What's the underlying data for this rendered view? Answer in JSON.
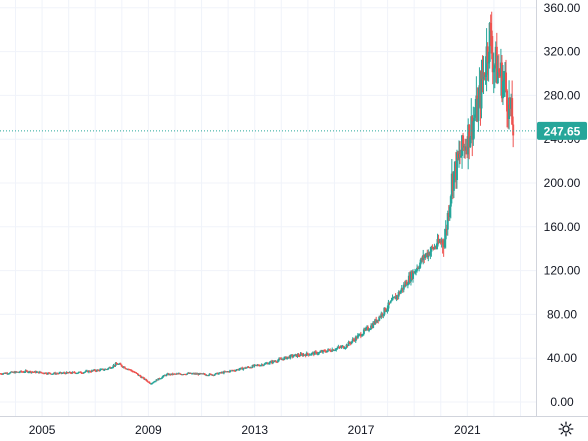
{
  "chart_data": {
    "type": "candlestick",
    "title": "",
    "xlabel": "",
    "ylabel": "",
    "x_ticks": [
      "2005",
      "2009",
      "2013",
      "2017",
      "2021"
    ],
    "y_ticks": [
      "0.00",
      "40.00",
      "80.00",
      "120.00",
      "160.00",
      "200.00",
      "240.00",
      "280.00",
      "320.00",
      "360.00"
    ],
    "ylim": [
      0,
      360
    ],
    "xlim": [
      "2003-06",
      "2023-08"
    ],
    "last_price": "247.65",
    "last_price_value": 247.65,
    "grid": true,
    "price_series": [
      {
        "date": "2003-06",
        "close": 26
      },
      {
        "date": "2004-06",
        "close": 28
      },
      {
        "date": "2005-06",
        "close": 26
      },
      {
        "date": "2006-06",
        "close": 27
      },
      {
        "date": "2007-06",
        "close": 30
      },
      {
        "date": "2007-11",
        "close": 35
      },
      {
        "date": "2008-06",
        "close": 28
      },
      {
        "date": "2009-02",
        "close": 17
      },
      {
        "date": "2009-09",
        "close": 25
      },
      {
        "date": "2010-06",
        "close": 26
      },
      {
        "date": "2011-06",
        "close": 25
      },
      {
        "date": "2012-06",
        "close": 30
      },
      {
        "date": "2013-06",
        "close": 35
      },
      {
        "date": "2014-06",
        "close": 42
      },
      {
        "date": "2015-06",
        "close": 45
      },
      {
        "date": "2016-06",
        "close": 51
      },
      {
        "date": "2017-06",
        "close": 70
      },
      {
        "date": "2018-06",
        "close": 99
      },
      {
        "date": "2019-06",
        "close": 134
      },
      {
        "date": "2020-03",
        "close": 150
      },
      {
        "date": "2020-06",
        "close": 203
      },
      {
        "date": "2021-06",
        "close": 270
      },
      {
        "date": "2021-11",
        "close": 335
      },
      {
        "date": "2022-01",
        "close": 310
      },
      {
        "date": "2022-06",
        "close": 290
      },
      {
        "date": "2022-10",
        "close": 247.65
      }
    ]
  },
  "colors": {
    "up": "#26a69a",
    "down": "#ef5350",
    "grid": "#f0f3fa",
    "price_line": "#26a69a",
    "price_tag": "#26a69a",
    "text": "#131722",
    "axis": "#d1d4dc"
  },
  "ui": {
    "settings_icon": "gear-icon"
  }
}
